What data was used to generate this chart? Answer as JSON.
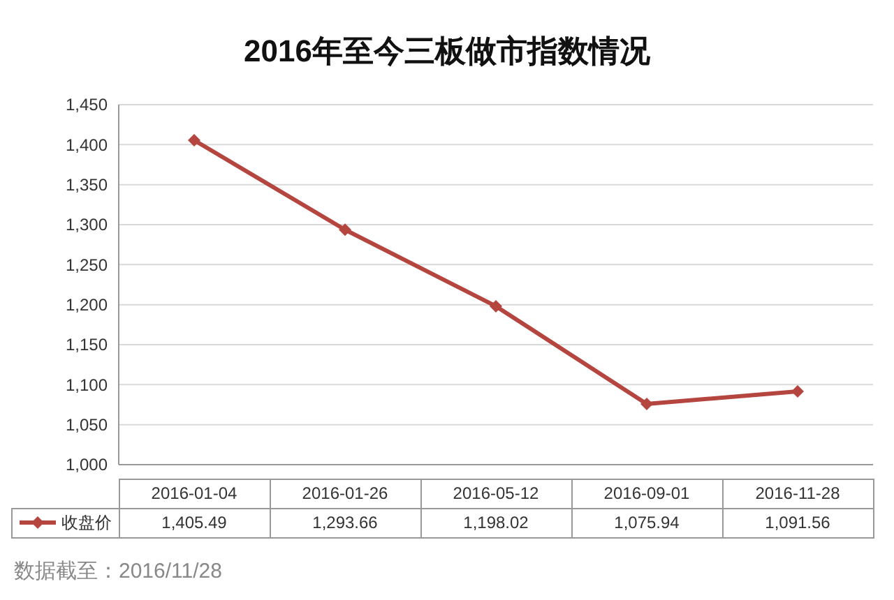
{
  "chart_data": {
    "type": "line",
    "title": "2016年至今三板做市指数情况",
    "categories": [
      "2016-01-04",
      "2016-01-26",
      "2016-05-12",
      "2016-09-01",
      "2016-11-28"
    ],
    "series": [
      {
        "name": "收盘价",
        "color": "#b5453f",
        "values": [
          1405.49,
          1293.66,
          1198.02,
          1075.94,
          1091.56
        ],
        "value_labels": [
          "1,405.49",
          "1,293.66",
          "1,198.02",
          "1,075.94",
          "1,091.56"
        ]
      }
    ],
    "ylim": [
      1000,
      1450
    ],
    "yticks": [
      {
        "value": 1000,
        "label": "1,000"
      },
      {
        "value": 1050,
        "label": "1,050"
      },
      {
        "value": 1100,
        "label": "1,100"
      },
      {
        "value": 1150,
        "label": "1,150"
      },
      {
        "value": 1200,
        "label": "1,200"
      },
      {
        "value": 1250,
        "label": "1,250"
      },
      {
        "value": 1300,
        "label": "1,300"
      },
      {
        "value": 1350,
        "label": "1,350"
      },
      {
        "value": 1400,
        "label": "1,400"
      },
      {
        "value": 1450,
        "label": "1,450"
      }
    ],
    "grid": "y",
    "marker": "diamond",
    "line_style": "solid",
    "legend": "bottom",
    "annotations": [
      "数据截至：2016/11/28"
    ]
  }
}
